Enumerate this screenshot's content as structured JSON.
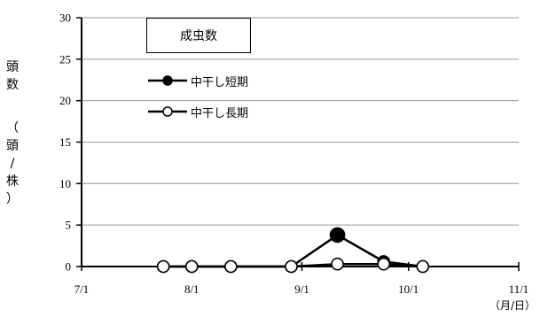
{
  "chart_data": {
    "type": "line",
    "title": "成虫数",
    "ylabel_top": "頭数",
    "ylabel_unit": [
      "（",
      "頭",
      "/",
      "株",
      "）"
    ],
    "xlabel_unit": "（月/日）",
    "ylim": [
      0,
      30
    ],
    "yticks": [
      "0",
      "5",
      "10",
      "15",
      "20",
      "25",
      "30"
    ],
    "xticks": [
      "7/1",
      "8/1",
      "9/1",
      "10/1",
      "11/1"
    ],
    "grid": true,
    "legend_position": "top-left",
    "series": [
      {
        "name": "中干し短期",
        "marker": "filled",
        "color": "#000000",
        "points": [
          {
            "x": "7/24",
            "y": 0
          },
          {
            "x": "8/1",
            "y": 0
          },
          {
            "x": "8/12",
            "y": 0
          },
          {
            "x": "8/29",
            "y": 0
          },
          {
            "x": "9/11",
            "y": 3.8
          },
          {
            "x": "9/24",
            "y": 0.6
          },
          {
            "x": "10/5",
            "y": 0
          }
        ]
      },
      {
        "name": "中干し長期",
        "marker": "open",
        "color": "#000000",
        "points": [
          {
            "x": "7/24",
            "y": 0
          },
          {
            "x": "8/1",
            "y": 0
          },
          {
            "x": "8/12",
            "y": 0
          },
          {
            "x": "8/29",
            "y": 0
          },
          {
            "x": "9/11",
            "y": 0.3
          },
          {
            "x": "9/24",
            "y": 0.3
          },
          {
            "x": "10/5",
            "y": 0
          }
        ]
      }
    ]
  }
}
